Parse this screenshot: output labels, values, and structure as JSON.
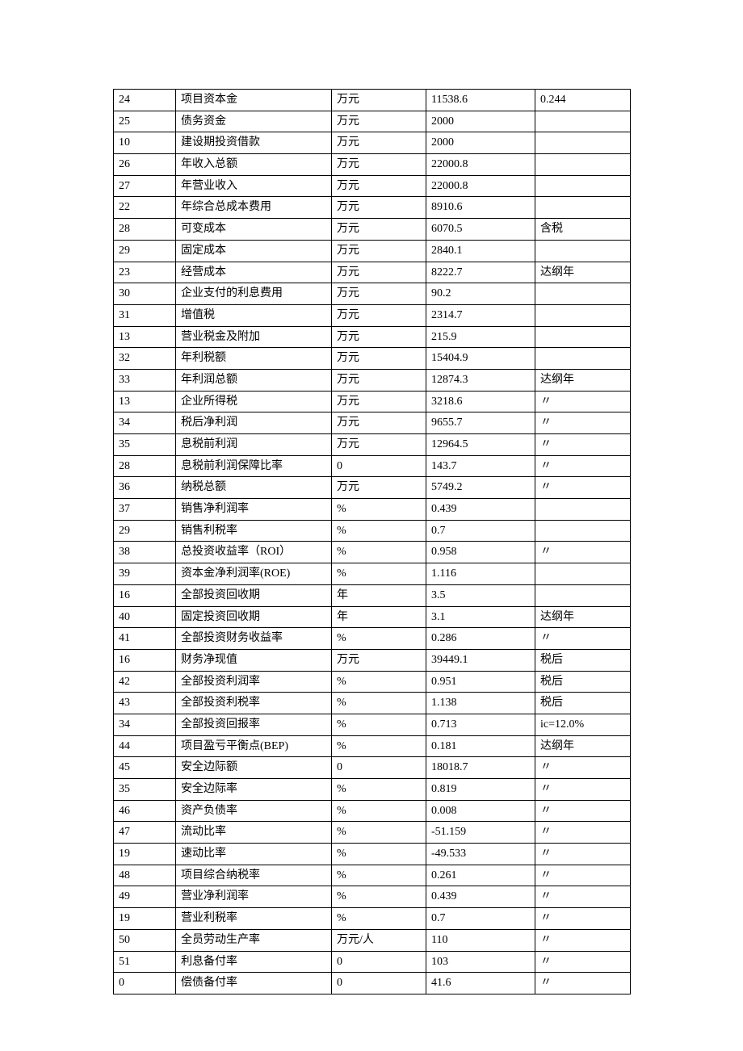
{
  "table": {
    "rows": [
      {
        "c1": "24",
        "c2": "项目资本金",
        "c3": "万元",
        "c4": "11538.6",
        "c5": "0.244"
      },
      {
        "c1": "25",
        "c2": "债务资金",
        "c3": "万元",
        "c4": "2000",
        "c5": ""
      },
      {
        "c1": "10",
        "c2": "建设期投资借款",
        "c3": "万元",
        "c4": "2000",
        "c5": ""
      },
      {
        "c1": "26",
        "c2": "年收入总额",
        "c3": "万元",
        "c4": "22000.8",
        "c5": ""
      },
      {
        "c1": "27",
        "c2": "年营业收入",
        "c3": "万元",
        "c4": "22000.8",
        "c5": ""
      },
      {
        "c1": "22",
        "c2": "年综合总成本费用",
        "c3": "万元",
        "c4": "8910.6",
        "c5": ""
      },
      {
        "c1": "28",
        "c2": "可变成本",
        "c3": "万元",
        "c4": "6070.5",
        "c5": "含税"
      },
      {
        "c1": "29",
        "c2": "固定成本",
        "c3": "万元",
        "c4": "2840.1",
        "c5": ""
      },
      {
        "c1": "23",
        "c2": "经营成本",
        "c3": "万元",
        "c4": "8222.7",
        "c5": "达纲年"
      },
      {
        "c1": "30",
        "c2": "企业支付的利息费用",
        "c3": "万元",
        "c4": "90.2",
        "c5": ""
      },
      {
        "c1": "31",
        "c2": "增值税",
        "c3": "万元",
        "c4": "2314.7",
        "c5": ""
      },
      {
        "c1": "13",
        "c2": "营业税金及附加",
        "c3": "万元",
        "c4": "215.9",
        "c5": ""
      },
      {
        "c1": "32",
        "c2": "年利税额",
        "c3": "万元",
        "c4": "15404.9",
        "c5": ""
      },
      {
        "c1": "33",
        "c2": "年利润总额",
        "c3": "万元",
        "c4": "12874.3",
        "c5": "达纲年"
      },
      {
        "c1": "13",
        "c2": "企业所得税",
        "c3": "万元",
        "c4": "3218.6",
        "c5": "〃"
      },
      {
        "c1": "34",
        "c2": "税后净利润",
        "c3": "万元",
        "c4": "9655.7",
        "c5": "〃"
      },
      {
        "c1": "35",
        "c2": "息税前利润",
        "c3": "万元",
        "c4": "12964.5",
        "c5": "〃"
      },
      {
        "c1": "28",
        "c2": "息税前利润保障比率",
        "c3": "0",
        "c4": "143.7",
        "c5": "〃"
      },
      {
        "c1": "36",
        "c2": "纳税总额",
        "c3": "万元",
        "c4": "5749.2",
        "c5": "〃"
      },
      {
        "c1": "37",
        "c2": "销售净利润率",
        "c3": "%",
        "c4": "0.439",
        "c5": ""
      },
      {
        "c1": "29",
        "c2": "销售利税率",
        "c3": "%",
        "c4": "0.7",
        "c5": ""
      },
      {
        "c1": "38",
        "c2": "总投资收益率（ROI）",
        "c3": "%",
        "c4": "0.958",
        "c5": "〃"
      },
      {
        "c1": "39",
        "c2": "资本金净利润率(ROE)",
        "c3": "%",
        "c4": "1.116",
        "c5": ""
      },
      {
        "c1": "16",
        "c2": "全部投资回收期",
        "c3": "年",
        "c4": "3.5",
        "c5": ""
      },
      {
        "c1": "40",
        "c2": "固定投资回收期",
        "c3": "年",
        "c4": "3.1",
        "c5": "达纲年"
      },
      {
        "c1": "41",
        "c2": "全部投资财务收益率",
        "c3": "%",
        "c4": "0.286",
        "c5": "〃"
      },
      {
        "c1": "16",
        "c2": "财务净现值",
        "c3": "万元",
        "c4": "39449.1",
        "c5": "税后"
      },
      {
        "c1": "42",
        "c2": "全部投资利润率",
        "c3": "%",
        "c4": "0.951",
        "c5": "税后"
      },
      {
        "c1": "43",
        "c2": "全部投资利税率",
        "c3": "%",
        "c4": "1.138",
        "c5": "税后"
      },
      {
        "c1": "34",
        "c2": "全部投资回报率",
        "c3": "%",
        "c4": "0.713",
        "c5": "ic=12.0%"
      },
      {
        "c1": "44",
        "c2": "项目盈亏平衡点(BEP)",
        "c3": "%",
        "c4": "0.181",
        "c5": "达纲年"
      },
      {
        "c1": "45",
        "c2": "安全边际额",
        "c3": "0",
        "c4": "18018.7",
        "c5": "〃"
      },
      {
        "c1": "35",
        "c2": "安全边际率",
        "c3": "%",
        "c4": "0.819",
        "c5": "〃"
      },
      {
        "c1": "46",
        "c2": "资产负债率",
        "c3": "%",
        "c4": "0.008",
        "c5": "〃"
      },
      {
        "c1": "47",
        "c2": "流动比率",
        "c3": "%",
        "c4": "-51.159",
        "c5": "〃"
      },
      {
        "c1": "19",
        "c2": "速动比率",
        "c3": "%",
        "c4": "-49.533",
        "c5": "〃"
      },
      {
        "c1": "48",
        "c2": "项目综合纳税率",
        "c3": "%",
        "c4": "0.261",
        "c5": "〃"
      },
      {
        "c1": "49",
        "c2": "营业净利润率",
        "c3": "%",
        "c4": "0.439",
        "c5": "〃"
      },
      {
        "c1": "19",
        "c2": "营业利税率",
        "c3": "%",
        "c4": "0.7",
        "c5": "〃"
      },
      {
        "c1": "50",
        "c2": "全员劳动生产率",
        "c3": "万元/人",
        "c4": "110",
        "c5": "〃"
      },
      {
        "c1": "51",
        "c2": "利息备付率",
        "c3": "0",
        "c4": "103",
        "c5": "〃"
      },
      {
        "c1": "0",
        "c2": "偿债备付率",
        "c3": "0",
        "c4": "41.6",
        "c5": "〃"
      }
    ]
  }
}
